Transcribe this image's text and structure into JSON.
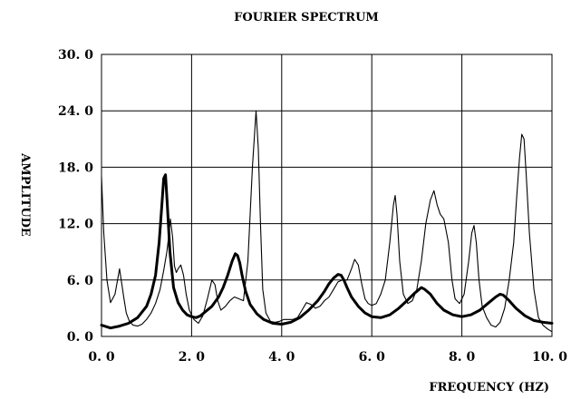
{
  "colors": {
    "background": "#ffffff",
    "ink": "#000000"
  },
  "chart_data": {
    "type": "line",
    "title": "FOURIER SPECTRUM",
    "xlabel": "FREQUENCY (HZ)",
    "ylabel": "AMPLITUDE",
    "xlim": [
      0,
      10
    ],
    "ylim": [
      0,
      30
    ],
    "x_ticks": [
      0,
      2,
      4,
      6,
      8,
      10
    ],
    "y_ticks": [
      0,
      6,
      12,
      18,
      24,
      30
    ],
    "x_tick_labels": [
      "0. 0",
      "2. 0",
      "4. 0",
      "6. 0",
      "8. 0",
      "10. 0"
    ],
    "y_tick_labels": [
      "0. 0",
      "6. 0",
      "12. 0",
      "18. 0",
      "24. 0",
      "30. 0"
    ],
    "grid": true,
    "series": [
      {
        "line_style": "thin",
        "x": [
          0.0,
          0.05,
          0.12,
          0.2,
          0.3,
          0.4,
          0.5,
          0.55,
          0.62,
          0.7,
          0.8,
          0.9,
          1.0,
          1.1,
          1.2,
          1.3,
          1.38,
          1.45,
          1.5,
          1.53,
          1.58,
          1.62,
          1.66,
          1.7,
          1.76,
          1.82,
          1.88,
          1.95,
          2.05,
          2.15,
          2.25,
          2.35,
          2.45,
          2.52,
          2.58,
          2.65,
          2.75,
          2.85,
          2.95,
          3.05,
          3.15,
          3.25,
          3.35,
          3.43,
          3.48,
          3.53,
          3.58,
          3.65,
          3.75,
          3.85,
          3.95,
          4.05,
          4.15,
          4.25,
          4.35,
          4.45,
          4.55,
          4.65,
          4.75,
          4.85,
          4.95,
          5.05,
          5.15,
          5.25,
          5.35,
          5.45,
          5.55,
          5.62,
          5.7,
          5.78,
          5.85,
          5.92,
          6.0,
          6.1,
          6.2,
          6.3,
          6.4,
          6.48,
          6.52,
          6.56,
          6.62,
          6.7,
          6.8,
          6.9,
          7.0,
          7.1,
          7.2,
          7.3,
          7.38,
          7.45,
          7.52,
          7.6,
          7.7,
          7.78,
          7.85,
          7.95,
          8.05,
          8.15,
          8.22,
          8.27,
          8.32,
          8.38,
          8.45,
          8.55,
          8.65,
          8.75,
          8.85,
          8.95,
          9.05,
          9.15,
          9.22,
          9.28,
          9.33,
          9.38,
          9.43,
          9.5,
          9.6,
          9.7,
          9.8,
          9.9,
          10.0
        ],
        "y": [
          17.0,
          11.0,
          6.0,
          3.6,
          4.5,
          7.2,
          4.0,
          2.5,
          1.6,
          1.2,
          1.1,
          1.3,
          1.8,
          2.5,
          3.5,
          5.0,
          7.0,
          9.0,
          11.0,
          12.5,
          10.5,
          7.5,
          6.8,
          7.2,
          7.6,
          6.5,
          4.5,
          2.8,
          1.8,
          1.4,
          2.2,
          4.0,
          6.0,
          5.5,
          3.8,
          2.8,
          3.2,
          3.8,
          4.2,
          4.0,
          3.8,
          8.0,
          18.0,
          24.0,
          20.0,
          12.0,
          5.0,
          2.5,
          1.6,
          1.5,
          1.6,
          1.8,
          1.8,
          1.8,
          2.0,
          2.8,
          3.6,
          3.4,
          3.0,
          3.2,
          3.8,
          4.2,
          5.0,
          5.8,
          6.0,
          6.0,
          7.2,
          8.2,
          7.6,
          5.5,
          4.0,
          3.5,
          3.3,
          3.5,
          4.5,
          6.0,
          10.0,
          14.0,
          15.0,
          13.0,
          8.0,
          4.5,
          3.5,
          3.8,
          5.0,
          8.0,
          12.0,
          14.5,
          15.5,
          14.0,
          13.0,
          12.5,
          10.0,
          6.0,
          4.0,
          3.5,
          4.5,
          8.0,
          11.0,
          11.8,
          10.0,
          6.0,
          3.2,
          2.0,
          1.2,
          1.0,
          1.5,
          3.0,
          6.0,
          10.0,
          15.0,
          19.0,
          21.5,
          21.0,
          17.0,
          11.0,
          5.0,
          2.0,
          1.2,
          0.8,
          0.5
        ]
      },
      {
        "line_style": "thick",
        "x": [
          0.0,
          0.2,
          0.4,
          0.6,
          0.8,
          1.0,
          1.1,
          1.2,
          1.28,
          1.34,
          1.38,
          1.42,
          1.46,
          1.52,
          1.6,
          1.7,
          1.8,
          1.9,
          2.0,
          2.1,
          2.2,
          2.3,
          2.45,
          2.6,
          2.7,
          2.8,
          2.9,
          2.97,
          3.02,
          3.07,
          3.12,
          3.2,
          3.3,
          3.45,
          3.6,
          3.8,
          4.0,
          4.2,
          4.4,
          4.6,
          4.8,
          4.95,
          5.05,
          5.15,
          5.25,
          5.32,
          5.38,
          5.45,
          5.55,
          5.7,
          5.85,
          6.0,
          6.2,
          6.4,
          6.6,
          6.8,
          6.95,
          7.05,
          7.1,
          7.18,
          7.3,
          7.45,
          7.6,
          7.8,
          8.0,
          8.2,
          8.4,
          8.6,
          8.75,
          8.85,
          8.92,
          9.05,
          9.2,
          9.4,
          9.6,
          9.8,
          10.0
        ],
        "y": [
          1.2,
          0.9,
          1.1,
          1.4,
          2.0,
          3.2,
          4.5,
          6.5,
          10.0,
          14.0,
          16.8,
          17.2,
          14.0,
          9.0,
          5.2,
          3.6,
          2.8,
          2.3,
          2.1,
          2.0,
          2.2,
          2.6,
          3.2,
          4.2,
          5.2,
          6.5,
          8.0,
          8.8,
          8.6,
          7.8,
          6.5,
          4.8,
          3.4,
          2.4,
          1.8,
          1.4,
          1.3,
          1.5,
          2.0,
          2.8,
          3.8,
          4.8,
          5.6,
          6.2,
          6.6,
          6.5,
          6.0,
          5.2,
          4.2,
          3.2,
          2.5,
          2.1,
          2.0,
          2.3,
          3.0,
          3.9,
          4.6,
          5.0,
          5.2,
          5.0,
          4.5,
          3.5,
          2.8,
          2.3,
          2.1,
          2.3,
          2.8,
          3.6,
          4.2,
          4.5,
          4.4,
          3.8,
          3.0,
          2.2,
          1.7,
          1.5,
          1.4
        ]
      }
    ]
  }
}
